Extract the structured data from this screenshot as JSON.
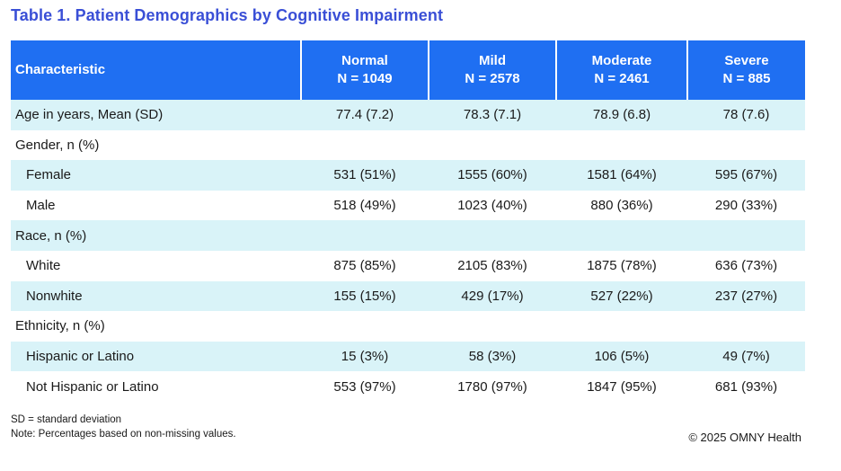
{
  "title": "Table 1. Patient Demographics by Cognitive Impairment",
  "colors": {
    "title": "#3a4fd6",
    "header_bg": "#1f6ff2",
    "row_shade": "#d9f3f8"
  },
  "table": {
    "header": {
      "characteristic": "Characteristic",
      "columns": [
        {
          "name": "Normal",
          "n": "N = 1049"
        },
        {
          "name": "Mild",
          "n": "N = 2578"
        },
        {
          "name": "Moderate",
          "n": "N = 2461"
        },
        {
          "name": "Severe",
          "n": "N = 885"
        }
      ]
    },
    "rows": [
      {
        "label": "Age in years, Mean (SD)",
        "indent": false,
        "values": [
          "77.4 (7.2)",
          "78.3 (7.1)",
          "78.9 (6.8)",
          "78 (7.6)"
        ]
      },
      {
        "label": "Gender, n (%)",
        "indent": false,
        "values": [
          "",
          "",
          "",
          ""
        ]
      },
      {
        "label": "Female",
        "indent": true,
        "values": [
          "531 (51%)",
          "1555 (60%)",
          "1581 (64%)",
          "595 (67%)"
        ]
      },
      {
        "label": "Male",
        "indent": true,
        "values": [
          "518 (49%)",
          "1023 (40%)",
          "880 (36%)",
          "290 (33%)"
        ]
      },
      {
        "label": "Race, n (%)",
        "indent": false,
        "values": [
          "",
          "",
          "",
          ""
        ]
      },
      {
        "label": "White",
        "indent": true,
        "values": [
          "875 (85%)",
          "2105 (83%)",
          "1875 (78%)",
          "636 (73%)"
        ]
      },
      {
        "label": "Nonwhite",
        "indent": true,
        "values": [
          "155 (15%)",
          "429 (17%)",
          "527 (22%)",
          "237 (27%)"
        ]
      },
      {
        "label": "Ethnicity, n (%)",
        "indent": false,
        "values": [
          "",
          "",
          "",
          ""
        ]
      },
      {
        "label": "Hispanic or Latino",
        "indent": true,
        "values": [
          "15 (3%)",
          "58 (3%)",
          "106 (5%)",
          "49 (7%)"
        ]
      },
      {
        "label": "Not Hispanic or Latino",
        "indent": true,
        "values": [
          "553 (97%)",
          "1780 (97%)",
          "1847 (95%)",
          "681 (93%)"
        ]
      }
    ]
  },
  "footnotes": [
    "SD = standard deviation",
    "Note: Percentages based on non-missing values."
  ],
  "copyright": "© 2025 OMNY Health"
}
